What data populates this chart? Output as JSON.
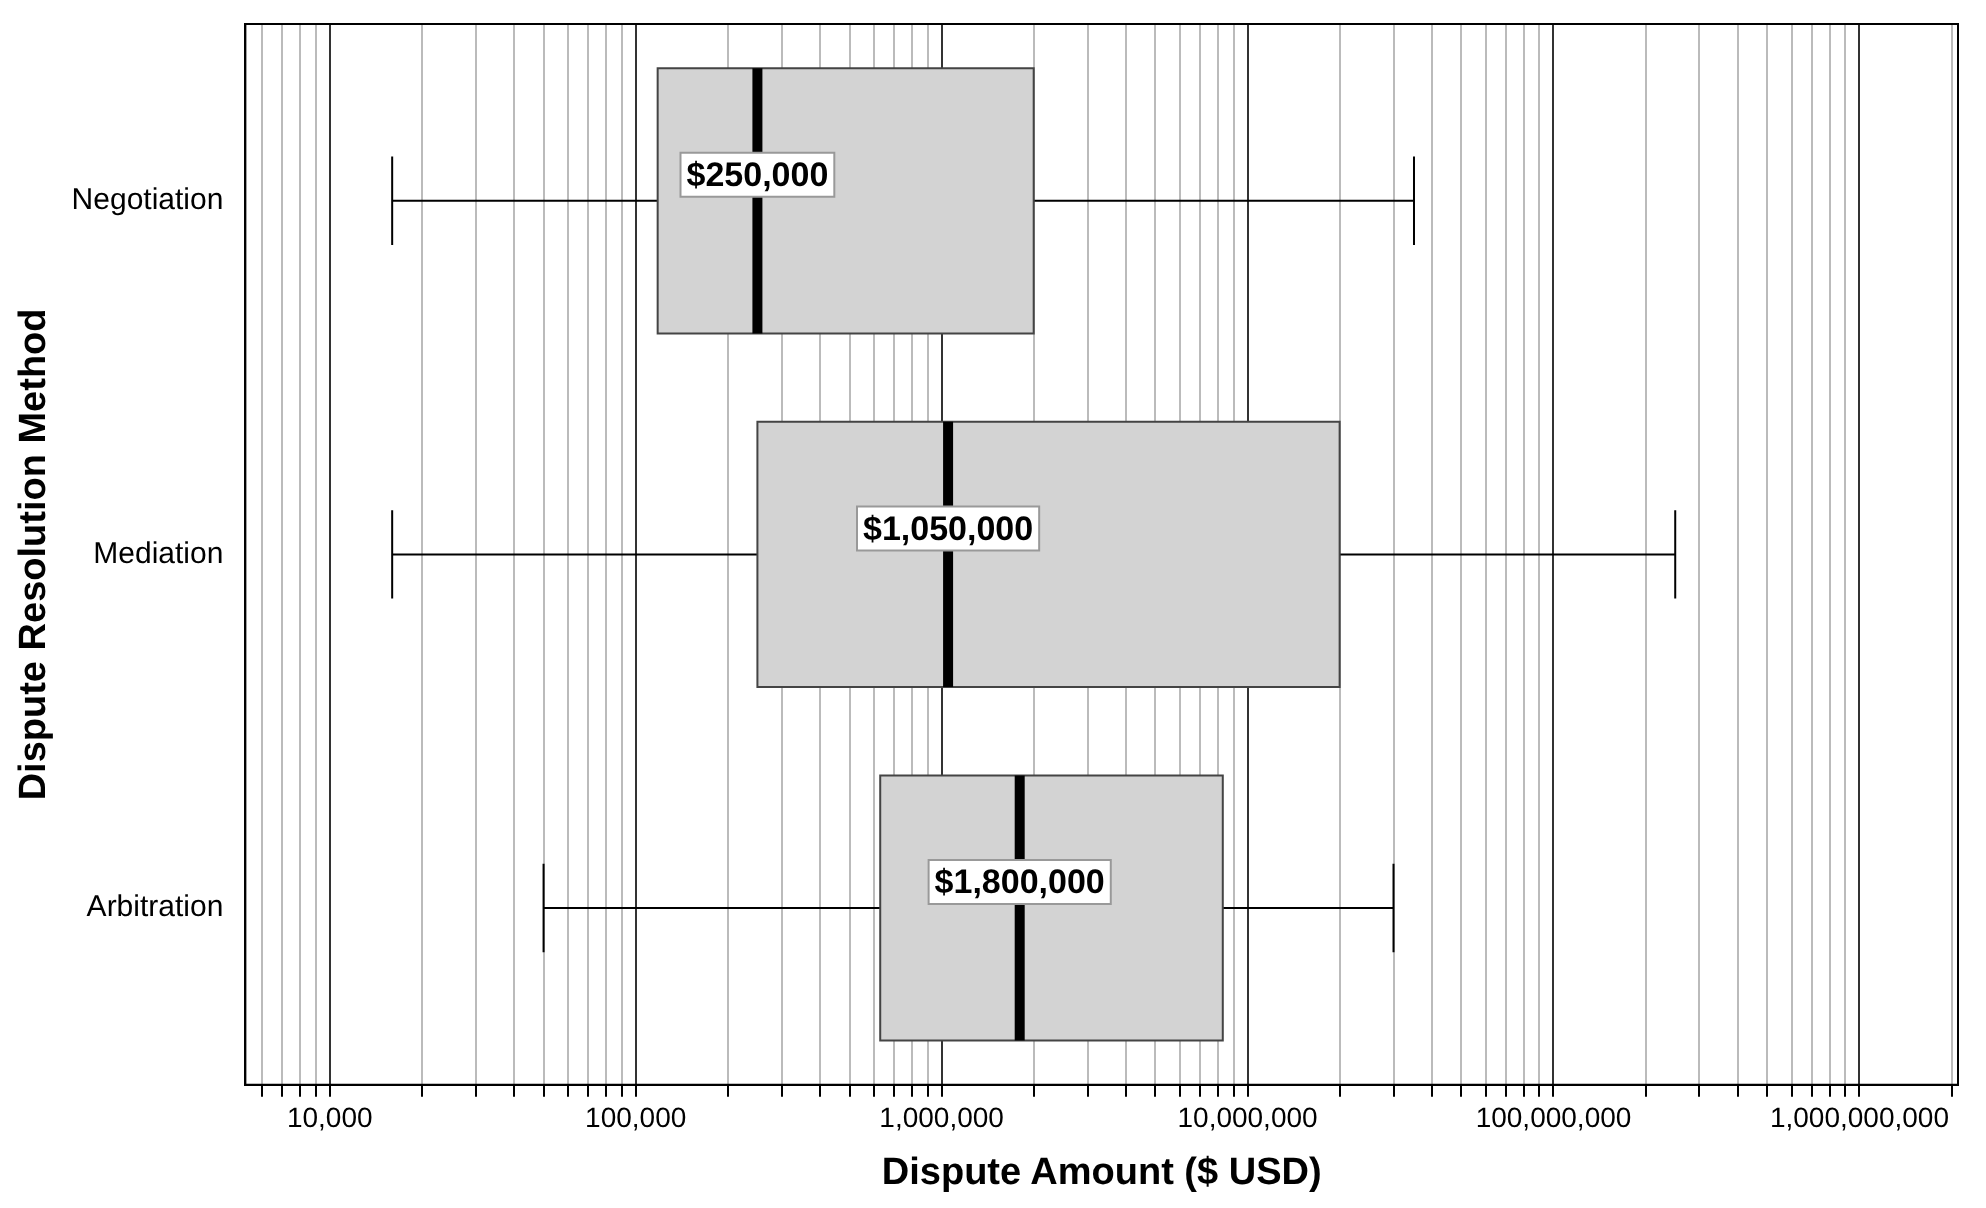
{
  "chart_data": {
    "type": "box",
    "orientation": "horizontal",
    "log": "x",
    "grid": "x",
    "legend": false,
    "xlabel": "Dispute Amount ($ USD)",
    "ylabel": "Dispute Resolution Method",
    "categories": [
      "Negotiation",
      "Mediation",
      "Arbitration"
    ],
    "color": "#d3d3d3",
    "boxes": [
      {
        "low": 16000,
        "q1": 118000,
        "median": 250000,
        "q3": 2000000,
        "high": 35000000
      },
      {
        "low": 16000,
        "q1": 250000,
        "median": 1050000,
        "q3": 20000000,
        "high": 250000000
      },
      {
        "low": 50000,
        "q1": 630000,
        "median": 1800000,
        "q3": 8300000,
        "high": 30000000
      }
    ],
    "annotations": [
      {
        "text": "$250,000",
        "x": 250000,
        "y": "Negotiation"
      },
      {
        "text": "$1,050,000",
        "x": 1050000,
        "y": "Mediation"
      },
      {
        "text": "$1,800,000",
        "x": 1800000,
        "y": "Arbitration"
      }
    ],
    "xlim": [
      5300,
      2100000000
    ],
    "xticks": [
      {
        "value": 6000,
        "label": null
      },
      {
        "value": 7000,
        "label": null
      },
      {
        "value": 8000,
        "label": null
      },
      {
        "value": 9000,
        "label": null
      },
      {
        "value": 10000,
        "label": "10,000"
      },
      {
        "value": 20000,
        "label": null
      },
      {
        "value": 30000,
        "label": null
      },
      {
        "value": 40000,
        "label": null
      },
      {
        "value": 50000,
        "label": null
      },
      {
        "value": 60000,
        "label": null
      },
      {
        "value": 70000,
        "label": null
      },
      {
        "value": 80000,
        "label": null
      },
      {
        "value": 90000,
        "label": null
      },
      {
        "value": 100000,
        "label": "100,000"
      },
      {
        "value": 200000,
        "label": null
      },
      {
        "value": 300000,
        "label": null
      },
      {
        "value": 400000,
        "label": null
      },
      {
        "value": 500000,
        "label": null
      },
      {
        "value": 600000,
        "label": null
      },
      {
        "value": 700000,
        "label": null
      },
      {
        "value": 800000,
        "label": null
      },
      {
        "value": 900000,
        "label": null
      },
      {
        "value": 1000000,
        "label": "1,000,000"
      },
      {
        "value": 2000000,
        "label": null
      },
      {
        "value": 3000000,
        "label": null
      },
      {
        "value": 4000000,
        "label": null
      },
      {
        "value": 5000000,
        "label": null
      },
      {
        "value": 6000000,
        "label": null
      },
      {
        "value": 7000000,
        "label": null
      },
      {
        "value": 8000000,
        "label": null
      },
      {
        "value": 9000000,
        "label": null
      },
      {
        "value": 10000000,
        "label": "10,000,000"
      },
      {
        "value": 20000000,
        "label": null
      },
      {
        "value": 30000000,
        "label": null
      },
      {
        "value": 40000000,
        "label": null
      },
      {
        "value": 50000000,
        "label": null
      },
      {
        "value": 60000000,
        "label": null
      },
      {
        "value": 70000000,
        "label": null
      },
      {
        "value": 80000000,
        "label": null
      },
      {
        "value": 90000000,
        "label": null
      },
      {
        "value": 100000000,
        "label": "100,000,000"
      },
      {
        "value": 200000000,
        "label": null
      },
      {
        "value": 300000000,
        "label": null
      },
      {
        "value": 400000000,
        "label": null
      },
      {
        "value": 500000000,
        "label": null
      },
      {
        "value": 600000000,
        "label": null
      },
      {
        "value": 700000000,
        "label": null
      },
      {
        "value": 800000000,
        "label": null
      },
      {
        "value": 900000000,
        "label": null
      },
      {
        "value": 1000000000,
        "label": "1,000,000,000"
      },
      {
        "value": 2000000000,
        "label": null
      }
    ]
  }
}
